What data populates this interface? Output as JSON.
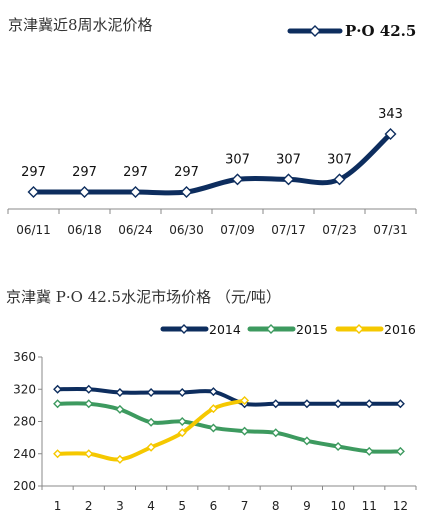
{
  "chart_data": [
    {
      "type": "line",
      "title": "京津冀近8周水泥价格",
      "categories": [
        "06/11",
        "06/18",
        "06/24",
        "06/30",
        "07/09",
        "07/17",
        "07/23",
        "07/31"
      ],
      "series": [
        {
          "name": "P·O 42.5",
          "values": [
            297,
            297,
            297,
            297,
            307,
            307,
            307,
            343
          ],
          "color": "#0d2d5e"
        }
      ],
      "data_labels": [
        "297",
        "297",
        "297",
        "297",
        "307",
        "307",
        "307",
        "343"
      ],
      "ylim": [
        280,
        350
      ],
      "grid": false,
      "legend": "top-right",
      "marker": "diamond"
    },
    {
      "type": "line",
      "title": "京津冀 P·O 42.5水泥市场价格 （元/吨）",
      "categories": [
        "1",
        "2",
        "3",
        "4",
        "5",
        "6",
        "7",
        "8",
        "9",
        "10",
        "11",
        "12"
      ],
      "series": [
        {
          "name": "2014",
          "values": [
            320,
            320,
            316,
            316,
            316,
            317,
            302,
            302,
            302,
            302,
            302,
            302
          ],
          "color": "#0d2d5e"
        },
        {
          "name": "2015",
          "values": [
            302,
            302,
            295,
            279,
            280,
            272,
            268,
            266,
            256,
            249,
            243,
            243
          ],
          "color": "#3d9a5f"
        },
        {
          "name": "2016",
          "values": [
            240,
            240,
            233,
            248,
            266,
            296,
            306,
            null,
            null,
            null,
            null,
            null
          ],
          "color": "#f5c800"
        }
      ],
      "y_ticks": [
        "360",
        "320",
        "280",
        "240",
        "200"
      ],
      "ylim": [
        200,
        360
      ],
      "grid": false,
      "legend": "top",
      "marker": "diamond"
    }
  ]
}
